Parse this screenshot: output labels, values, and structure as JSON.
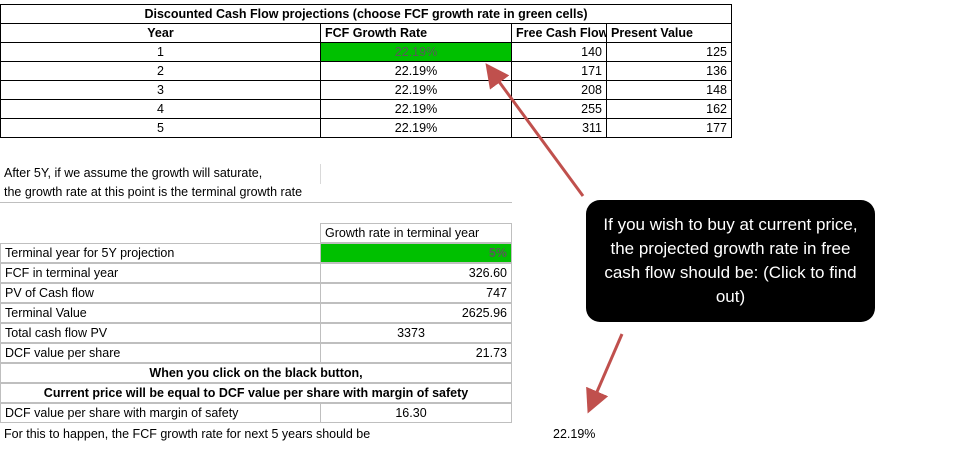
{
  "projection_table": {
    "title": "Discounted Cash Flow projections (choose FCF growth rate in green cells)",
    "headers": [
      "Year",
      "FCF Growth Rate",
      "Free Cash Flow",
      "Present Value"
    ],
    "rows": [
      {
        "year": "1",
        "rate": "22.19%",
        "fcf": "140",
        "pv": "125"
      },
      {
        "year": "2",
        "rate": "22.19%",
        "fcf": "171",
        "pv": "136"
      },
      {
        "year": "3",
        "rate": "22.19%",
        "fcf": "208",
        "pv": "148"
      },
      {
        "year": "4",
        "rate": "22.19%",
        "fcf": "255",
        "pv": "162"
      },
      {
        "year": "5",
        "rate": "22.19%",
        "fcf": "311",
        "pv": "177"
      }
    ]
  },
  "note": {
    "line1": "After 5Y, if we assume the growth will saturate,",
    "line2": "the growth rate at this point is the terminal growth rate"
  },
  "terminal_table": {
    "header": "Growth rate in terminal year",
    "rows": [
      {
        "label": "Terminal year for 5Y projection",
        "value": "5%"
      },
      {
        "label": "FCF in terminal year",
        "value": "326.60"
      },
      {
        "label": "PV of Cash flow",
        "value": "747"
      },
      {
        "label": "Terminal Value",
        "value": "2625.96"
      },
      {
        "label": "Total cash flow PV",
        "value": "3373"
      },
      {
        "label": "DCF value per share",
        "value": "21.73"
      }
    ],
    "click_note1": "When you click on the black button,",
    "click_note2": "Current price will be equal to DCF value per share with margin of safety",
    "mos_label": "DCF value per share with margin of safety",
    "mos_value": "16.30",
    "result_label": "For this to happen, the FCF growth rate for next 5 years should be",
    "result_value": "22.19%"
  },
  "black_button": {
    "text": "If you wish to buy at current price, the projected growth rate in free cash flow should be: (Click to find out)"
  },
  "colors": {
    "green_cell": "#00c000",
    "button_bg": "#000000",
    "arrow": "#c0504d"
  }
}
